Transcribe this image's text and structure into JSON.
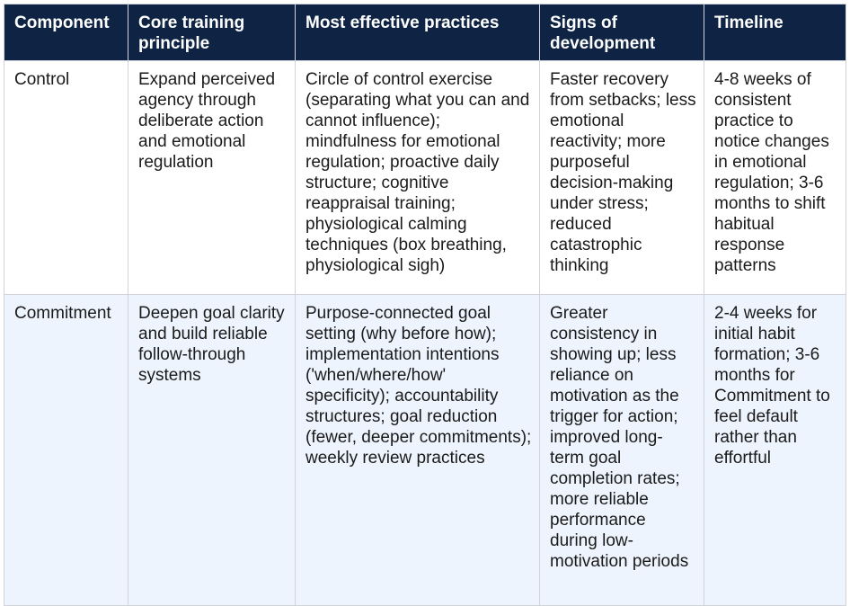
{
  "table": {
    "headers": [
      "Component",
      "Core training principle",
      "Most effective practices",
      "Signs of development",
      "Timeline"
    ],
    "rows": [
      {
        "component": "Control",
        "principle": "Expand perceived agency through deliberate action and emotional regulation",
        "practices": "Circle of control exercise (separating what you can and cannot influence); mindfulness for emotional regulation; proactive daily structure; cognitive reappraisal training; physiological calming techniques (box breathing, physiological sigh)",
        "signs": "Faster recovery from setbacks; less emotional reactivity; more purposeful decision-making under stress; reduced catastrophic thinking",
        "timeline": "4-8 weeks of consistent practice to notice changes in emotional regulation; 3-6 months to shift habitual response patterns"
      },
      {
        "component": "Commitment",
        "principle": "Deepen goal clarity and build reliable follow-through systems",
        "practices": "Purpose-connected goal setting (why before how); implementation intentions ('when/where/how' specificity); accountability structures; goal reduction (fewer, deeper commitments); weekly review practices",
        "signs": "Greater consistency in showing up; less reliance on motivation as the trigger for action; improved long-term goal completion rates; more reliable performance during low-motivation periods",
        "timeline": "2-4 weeks for initial habit formation; 3-6 months for Commitment to feel default rather than effortful"
      }
    ]
  }
}
